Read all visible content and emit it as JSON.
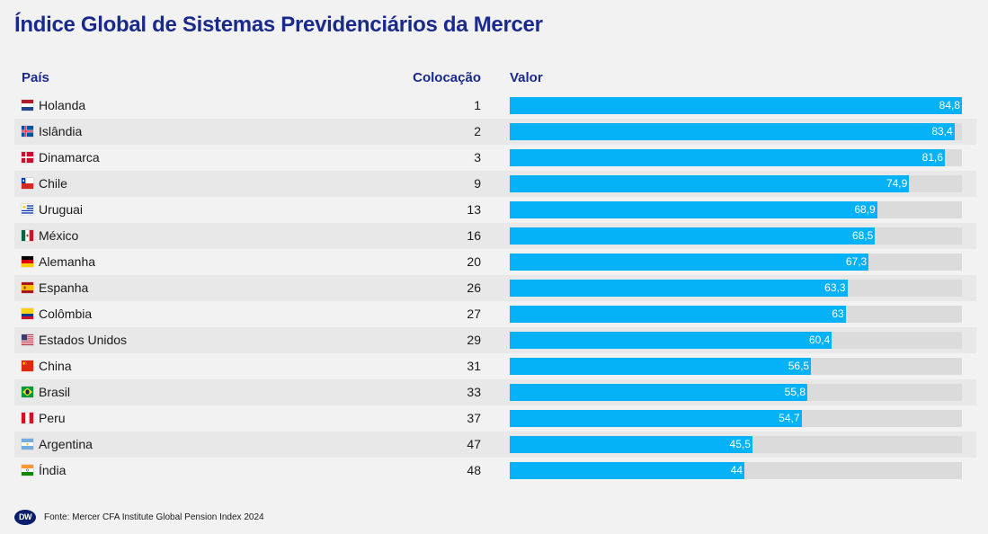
{
  "title": "Índice Global de Sistemas Previdenciários da Mercer",
  "headers": {
    "country": "País",
    "rank": "Colocação",
    "value": "Valor"
  },
  "source": {
    "logo": "DW",
    "text": "Fonte: Mercer CFA Institute Global Pension Index 2024"
  },
  "colors": {
    "bar": "#05b2f7",
    "track": "#dcdbdb",
    "title": "#1a2a8c"
  },
  "chart_data": {
    "type": "bar",
    "xlim": [
      0,
      84.8
    ],
    "rows": [
      {
        "country": "Holanda",
        "flag": "netherlands-flag-icon",
        "rank": "1",
        "value": 84.8,
        "label": "84,8"
      },
      {
        "country": "Islândia",
        "flag": "iceland-flag-icon",
        "rank": "2",
        "value": 83.4,
        "label": "83,4"
      },
      {
        "country": "Dinamarca",
        "flag": "denmark-flag-icon",
        "rank": "3",
        "value": 81.6,
        "label": "81,6"
      },
      {
        "country": "Chile",
        "flag": "chile-flag-icon",
        "rank": "9",
        "value": 74.9,
        "label": "74,9"
      },
      {
        "country": "Uruguai",
        "flag": "uruguay-flag-icon",
        "rank": "13",
        "value": 68.9,
        "label": "68,9"
      },
      {
        "country": "México",
        "flag": "mexico-flag-icon",
        "rank": "16",
        "value": 68.5,
        "label": "68,5"
      },
      {
        "country": "Alemanha",
        "flag": "germany-flag-icon",
        "rank": "20",
        "value": 67.3,
        "label": "67,3"
      },
      {
        "country": "Espanha",
        "flag": "spain-flag-icon",
        "rank": "26",
        "value": 63.3,
        "label": "63,3"
      },
      {
        "country": "Colômbia",
        "flag": "colombia-flag-icon",
        "rank": "27",
        "value": 63,
        "label": "63"
      },
      {
        "country": "Estados Unidos",
        "flag": "usa-flag-icon",
        "rank": "29",
        "value": 60.4,
        "label": "60,4"
      },
      {
        "country": "China",
        "flag": "china-flag-icon",
        "rank": "31",
        "value": 56.5,
        "label": "56,5"
      },
      {
        "country": "Brasil",
        "flag": "brazil-flag-icon",
        "rank": "33",
        "value": 55.8,
        "label": "55,8"
      },
      {
        "country": "Peru",
        "flag": "peru-flag-icon",
        "rank": "37",
        "value": 54.7,
        "label": "54,7"
      },
      {
        "country": "Argentina",
        "flag": "argentina-flag-icon",
        "rank": "47",
        "value": 45.5,
        "label": "45,5"
      },
      {
        "country": "Índia",
        "flag": "india-flag-icon",
        "rank": "48",
        "value": 44,
        "label": "44"
      }
    ]
  }
}
